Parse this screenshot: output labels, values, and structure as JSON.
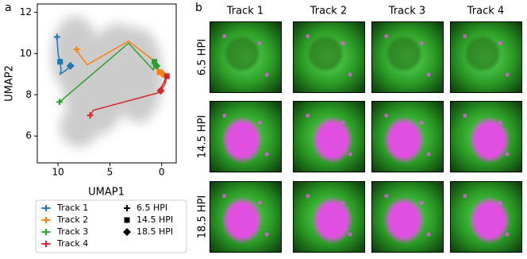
{
  "panel_labels": [
    "a",
    "b"
  ],
  "chart_data": {
    "type": "line",
    "xlabel": "UMAP1",
    "ylabel": "UMAP2",
    "xlim": [
      12,
      -1.4
    ],
    "ylim": [
      4.7,
      12.4
    ],
    "xticks": [
      10,
      5,
      0
    ],
    "yticks": [
      6,
      8,
      10,
      12
    ],
    "marker_legend": [
      {
        "label": "6.5 HPI",
        "shape": "plus"
      },
      {
        "label": "14.5 HPI",
        "shape": "square"
      },
      {
        "label": "18.5 HPI",
        "shape": "diamond"
      }
    ],
    "series": [
      {
        "name": "Track 1",
        "color": "#1f77b4",
        "x": [
          10.1,
          10.0,
          9.8,
          9.7,
          9.8,
          9.2,
          8.8
        ],
        "values": [
          10.8,
          10.0,
          9.6,
          9.2,
          9.0,
          9.2,
          9.4
        ],
        "marker_indices": [
          0,
          2,
          6
        ]
      },
      {
        "name": "Track 2",
        "color": "#ff7f0e",
        "x": [
          8.2,
          8.0,
          7.2,
          3.2,
          0.6,
          0.2,
          -0.1
        ],
        "values": [
          10.2,
          10.0,
          9.45,
          10.6,
          9.6,
          9.1,
          9.0
        ],
        "marker_indices": [
          0,
          5,
          6
        ]
      },
      {
        "name": "Track 3",
        "color": "#2ca02c",
        "x": [
          9.85,
          3.2,
          0.8,
          0.7,
          0.5
        ],
        "values": [
          7.65,
          10.5,
          9.2,
          9.6,
          9.4
        ],
        "marker_indices": [
          0,
          3,
          4
        ]
      },
      {
        "name": "Track 4",
        "color": "#d62728",
        "x": [
          6.9,
          6.6,
          0.3,
          -0.5,
          -0.3,
          0.1
        ],
        "values": [
          7.0,
          7.25,
          8.1,
          8.9,
          8.5,
          8.2
        ],
        "marker_indices": [
          0,
          3,
          5
        ]
      }
    ]
  },
  "image_grid": {
    "columns": [
      "Track 1",
      "Track 2",
      "Track 3",
      "Track 4"
    ],
    "rows": [
      "6.5 HPI",
      "14.5 HPI",
      "18.5 HPI"
    ]
  }
}
